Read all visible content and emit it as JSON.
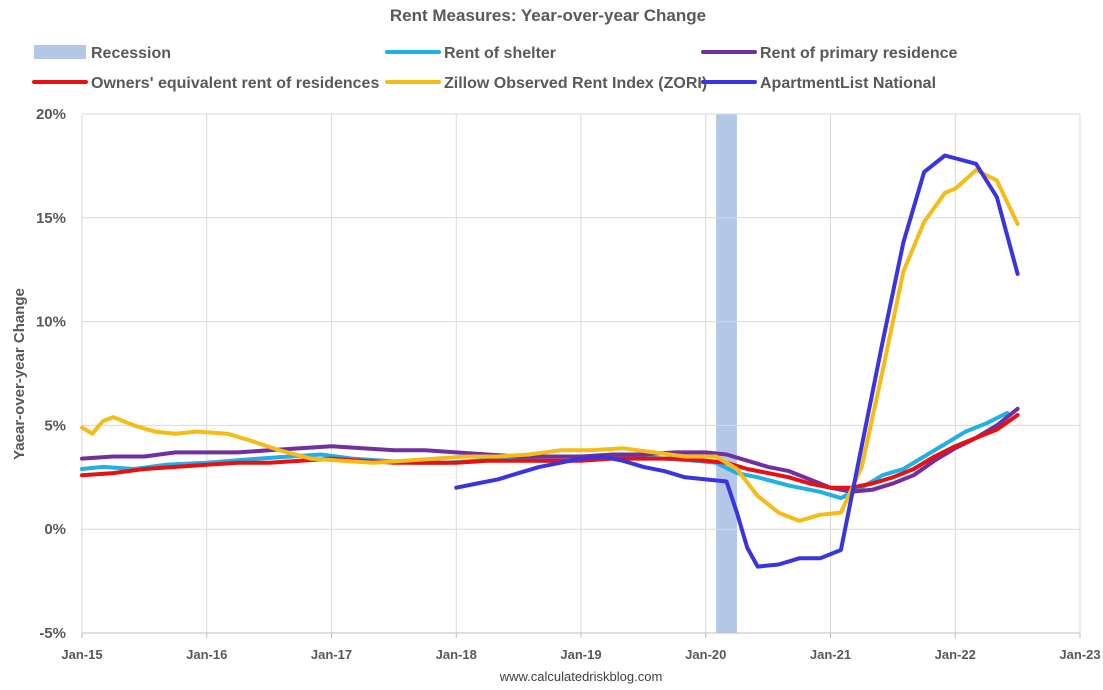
{
  "chart_data": {
    "type": "line",
    "title": "Rent Measures: Year-over-year Change",
    "ylabel": "Yaear-over-year Change",
    "xlabel": "",
    "source": "www.calculatedriskblog.com",
    "ylim": [
      -5,
      20
    ],
    "y_ticks": [
      {
        "value": 20,
        "label": "20%"
      },
      {
        "value": 15,
        "label": "15%"
      },
      {
        "value": 10,
        "label": "10%"
      },
      {
        "value": 5,
        "label": "5%"
      },
      {
        "value": 0,
        "label": "0%"
      },
      {
        "value": -5,
        "label": "-5%"
      }
    ],
    "xlim": [
      "2015-01",
      "2023-01"
    ],
    "x_ticks": [
      {
        "value": "2015-01",
        "label": "Jan-15"
      },
      {
        "value": "2016-01",
        "label": "Jan-16"
      },
      {
        "value": "2017-01",
        "label": "Jan-17"
      },
      {
        "value": "2018-01",
        "label": "Jan-18"
      },
      {
        "value": "2019-01",
        "label": "Jan-19"
      },
      {
        "value": "2020-01",
        "label": "Jan-20"
      },
      {
        "value": "2021-01",
        "label": "Jan-21"
      },
      {
        "value": "2022-01",
        "label": "Jan-22"
      },
      {
        "value": "2023-01",
        "label": "Jan-23"
      }
    ],
    "grid": true,
    "legend_position": "top",
    "recession": {
      "name": "Recession",
      "start": "2020-02",
      "end": "2020-04",
      "color": "#b4c7e7"
    },
    "series": [
      {
        "name": "Rent of shelter",
        "color": "#1eb0e6",
        "points": [
          [
            "2015-01",
            2.9
          ],
          [
            "2015-03",
            3.0
          ],
          [
            "2015-06",
            2.9
          ],
          [
            "2015-09",
            3.1
          ],
          [
            "2016-01",
            3.2
          ],
          [
            "2016-06",
            3.4
          ],
          [
            "2016-09",
            3.5
          ],
          [
            "2016-12",
            3.6
          ],
          [
            "2017-03",
            3.4
          ],
          [
            "2017-06",
            3.3
          ],
          [
            "2017-09",
            3.2
          ],
          [
            "2017-12",
            3.2
          ],
          [
            "2018-03",
            3.3
          ],
          [
            "2018-06",
            3.4
          ],
          [
            "2018-09",
            3.3
          ],
          [
            "2018-12",
            3.3
          ],
          [
            "2019-03",
            3.4
          ],
          [
            "2019-06",
            3.5
          ],
          [
            "2019-09",
            3.4
          ],
          [
            "2019-12",
            3.3
          ],
          [
            "2020-02",
            3.2
          ],
          [
            "2020-04",
            2.7
          ],
          [
            "2020-06",
            2.5
          ],
          [
            "2020-09",
            2.1
          ],
          [
            "2020-12",
            1.8
          ],
          [
            "2021-02",
            1.5
          ],
          [
            "2021-04",
            2.0
          ],
          [
            "2021-06",
            2.6
          ],
          [
            "2021-08",
            2.9
          ],
          [
            "2021-10",
            3.5
          ],
          [
            "2021-12",
            4.1
          ],
          [
            "2022-02",
            4.7
          ],
          [
            "2022-04",
            5.1
          ],
          [
            "2022-06",
            5.6
          ]
        ]
      },
      {
        "name": "Rent of primary residence",
        "color": "#7030a0",
        "points": [
          [
            "2015-01",
            3.4
          ],
          [
            "2015-04",
            3.5
          ],
          [
            "2015-07",
            3.5
          ],
          [
            "2015-10",
            3.7
          ],
          [
            "2016-01",
            3.7
          ],
          [
            "2016-04",
            3.7
          ],
          [
            "2016-07",
            3.8
          ],
          [
            "2016-10",
            3.9
          ],
          [
            "2017-01",
            4.0
          ],
          [
            "2017-04",
            3.9
          ],
          [
            "2017-07",
            3.8
          ],
          [
            "2017-10",
            3.8
          ],
          [
            "2018-01",
            3.7
          ],
          [
            "2018-04",
            3.6
          ],
          [
            "2018-07",
            3.5
          ],
          [
            "2018-10",
            3.5
          ],
          [
            "2019-01",
            3.5
          ],
          [
            "2019-04",
            3.6
          ],
          [
            "2019-07",
            3.6
          ],
          [
            "2019-10",
            3.7
          ],
          [
            "2020-01",
            3.7
          ],
          [
            "2020-03",
            3.6
          ],
          [
            "2020-05",
            3.3
          ],
          [
            "2020-07",
            3.0
          ],
          [
            "2020-09",
            2.8
          ],
          [
            "2020-11",
            2.4
          ],
          [
            "2021-01",
            2.0
          ],
          [
            "2021-03",
            1.8
          ],
          [
            "2021-05",
            1.9
          ],
          [
            "2021-07",
            2.2
          ],
          [
            "2021-09",
            2.6
          ],
          [
            "2021-11",
            3.3
          ],
          [
            "2022-01",
            3.9
          ],
          [
            "2022-03",
            4.4
          ],
          [
            "2022-05",
            5.0
          ],
          [
            "2022-07",
            5.8
          ]
        ]
      },
      {
        "name": "Owners' equivalent rent of residences",
        "color": "#e81010",
        "points": [
          [
            "2015-01",
            2.6
          ],
          [
            "2015-04",
            2.7
          ],
          [
            "2015-07",
            2.9
          ],
          [
            "2015-10",
            3.0
          ],
          [
            "2016-01",
            3.1
          ],
          [
            "2016-04",
            3.2
          ],
          [
            "2016-07",
            3.2
          ],
          [
            "2016-10",
            3.3
          ],
          [
            "2017-01",
            3.4
          ],
          [
            "2017-04",
            3.3
          ],
          [
            "2017-07",
            3.2
          ],
          [
            "2017-10",
            3.2
          ],
          [
            "2018-01",
            3.2
          ],
          [
            "2018-04",
            3.3
          ],
          [
            "2018-07",
            3.3
          ],
          [
            "2018-10",
            3.3
          ],
          [
            "2019-01",
            3.3
          ],
          [
            "2019-04",
            3.4
          ],
          [
            "2019-07",
            3.4
          ],
          [
            "2019-10",
            3.4
          ],
          [
            "2020-01",
            3.3
          ],
          [
            "2020-03",
            3.2
          ],
          [
            "2020-05",
            2.9
          ],
          [
            "2020-07",
            2.7
          ],
          [
            "2020-09",
            2.5
          ],
          [
            "2020-11",
            2.2
          ],
          [
            "2021-01",
            2.0
          ],
          [
            "2021-03",
            2.0
          ],
          [
            "2021-05",
            2.2
          ],
          [
            "2021-07",
            2.5
          ],
          [
            "2021-09",
            2.9
          ],
          [
            "2021-11",
            3.5
          ],
          [
            "2022-01",
            4.0
          ],
          [
            "2022-03",
            4.4
          ],
          [
            "2022-05",
            4.8
          ],
          [
            "2022-07",
            5.5
          ]
        ]
      },
      {
        "name": "Zillow Observed Rent Index (ZORI)",
        "color": "#f5bc17",
        "points": [
          [
            "2015-01",
            4.9
          ],
          [
            "2015-02",
            4.6
          ],
          [
            "2015-03",
            5.2
          ],
          [
            "2015-04",
            5.4
          ],
          [
            "2015-06",
            5.0
          ],
          [
            "2015-08",
            4.7
          ],
          [
            "2015-10",
            4.6
          ],
          [
            "2015-12",
            4.7
          ],
          [
            "2016-03",
            4.6
          ],
          [
            "2016-05",
            4.3
          ],
          [
            "2016-08",
            3.8
          ],
          [
            "2016-11",
            3.4
          ],
          [
            "2017-02",
            3.3
          ],
          [
            "2017-05",
            3.2
          ],
          [
            "2017-08",
            3.3
          ],
          [
            "2017-11",
            3.4
          ],
          [
            "2018-02",
            3.5
          ],
          [
            "2018-05",
            3.5
          ],
          [
            "2018-08",
            3.6
          ],
          [
            "2018-11",
            3.8
          ],
          [
            "2019-02",
            3.8
          ],
          [
            "2019-05",
            3.9
          ],
          [
            "2019-08",
            3.7
          ],
          [
            "2019-11",
            3.5
          ],
          [
            "2020-02",
            3.5
          ],
          [
            "2020-04",
            2.9
          ],
          [
            "2020-06",
            1.6
          ],
          [
            "2020-08",
            0.8
          ],
          [
            "2020-10",
            0.4
          ],
          [
            "2020-12",
            0.7
          ],
          [
            "2021-02",
            0.8
          ],
          [
            "2021-04",
            3.0
          ],
          [
            "2021-06",
            7.6
          ],
          [
            "2021-08",
            12.4
          ],
          [
            "2021-10",
            14.8
          ],
          [
            "2021-12",
            16.2
          ],
          [
            "2022-01",
            16.4
          ],
          [
            "2022-03",
            17.3
          ],
          [
            "2022-05",
            16.8
          ],
          [
            "2022-07",
            14.7
          ]
        ]
      },
      {
        "name": "ApartmentList National",
        "color": "#3a34e0",
        "points": [
          [
            "2018-01",
            2.0
          ],
          [
            "2018-03",
            2.2
          ],
          [
            "2018-05",
            2.4
          ],
          [
            "2018-07",
            2.7
          ],
          [
            "2018-09",
            3.0
          ],
          [
            "2018-11",
            3.2
          ],
          [
            "2019-01",
            3.4
          ],
          [
            "2019-03",
            3.5
          ],
          [
            "2019-05",
            3.3
          ],
          [
            "2019-07",
            3.0
          ],
          [
            "2019-09",
            2.8
          ],
          [
            "2019-11",
            2.5
          ],
          [
            "2020-01",
            2.4
          ],
          [
            "2020-03",
            2.3
          ],
          [
            "2020-04",
            0.8
          ],
          [
            "2020-05",
            -0.9
          ],
          [
            "2020-06",
            -1.8
          ],
          [
            "2020-08",
            -1.7
          ],
          [
            "2020-10",
            -1.4
          ],
          [
            "2020-12",
            -1.4
          ],
          [
            "2021-02",
            -1.0
          ],
          [
            "2021-04",
            4.0
          ],
          [
            "2021-06",
            9.0
          ],
          [
            "2021-08",
            13.8
          ],
          [
            "2021-10",
            17.2
          ],
          [
            "2021-12",
            18.0
          ],
          [
            "2022-03",
            17.6
          ],
          [
            "2022-05",
            16.0
          ],
          [
            "2022-07",
            12.3
          ]
        ]
      }
    ]
  }
}
